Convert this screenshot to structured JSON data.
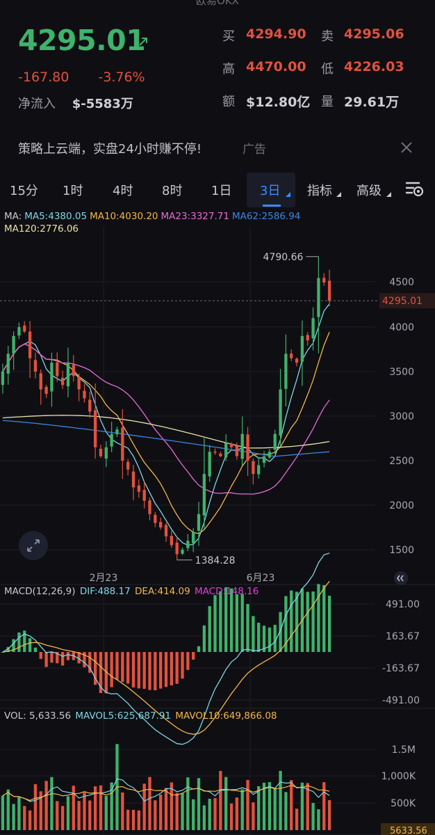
{
  "app": {
    "title": "欧易OKX"
  },
  "ticker": {
    "last_price": "4295.01",
    "change": "-167.80",
    "change_pct": "-3.76%",
    "netflow_label": "净流入",
    "netflow_value": "$-5583万"
  },
  "quote": {
    "bid_label": "买",
    "bid": "4294.90",
    "ask_label": "卖",
    "ask": "4295.06",
    "high_label": "高",
    "high": "4470.00",
    "low_label": "低",
    "low": "4226.03",
    "amount_label": "额",
    "amount": "$12.80亿",
    "volume_label": "量",
    "volume": "29.61万"
  },
  "ad": {
    "text": "策略上云端，实盘24小时赚不停!",
    "tag": "广告"
  },
  "tabs": [
    {
      "label": "15分"
    },
    {
      "label": "1时"
    },
    {
      "label": "4时"
    },
    {
      "label": "8时"
    },
    {
      "label": "1日"
    },
    {
      "label": "3日",
      "active": true
    },
    {
      "label": "指标"
    },
    {
      "label": "高级"
    }
  ],
  "ma_legend": {
    "ma_label": "MA:",
    "ma5": "MA5:4380.05",
    "ma10": "MA10:4030.20",
    "ma23": "MA23:3327.71",
    "ma62": "MA62:2586.94",
    "ma120": "MA120:2776.06"
  },
  "price_axis": [
    "4500",
    "4000",
    "3500",
    "3000",
    "2500",
    "2000",
    "1500"
  ],
  "current_price_tag": "4295.01",
  "high_marker": "4790.66",
  "low_marker": "1384.28",
  "date_axis": [
    "2月23",
    "6月23"
  ],
  "macd_legend": {
    "params": "MACD(12,26,9)",
    "dif": "DIF:488.17",
    "dea": "DEA:414.09",
    "macd": "MACD:148.16"
  },
  "macd_axis": [
    "491.00",
    "163.67",
    "-163.67",
    "-491.00"
  ],
  "vol_legend": {
    "vol": "VOL: 5,633.56",
    "mavol5": "MAVOL5:625,687.91",
    "mavol10": "MAVOL10:649,866.08"
  },
  "vol_axis": [
    "1.5M",
    "1,000K",
    "500K"
  ],
  "vol_current_tag": "5633.56",
  "colors": {
    "up": "#3fb26b",
    "down": "#e2523f",
    "ma5": "#7fd6e6",
    "ma10": "#f5b64a",
    "ma23": "#e86bd8",
    "ma62": "#3d85e0",
    "ma120": "#e8e3a8",
    "dif": "#7fd6e6",
    "dea": "#f5b64a",
    "macd": "#e23fd6"
  },
  "chart_data": [
    {
      "type": "candlestick",
      "title": "",
      "interval": "3日",
      "x_labels": [
        "2月23",
        "6月23"
      ],
      "ylim": [
        1384.28,
        4790.66
      ],
      "y_ticks": [
        1500,
        2000,
        2500,
        3000,
        3500,
        4000,
        4500
      ],
      "last": 4295.01,
      "period_high": 4790.66,
      "period_low": 1384.28,
      "moving_averages": {
        "MA5": 4380.05,
        "MA10": 4030.2,
        "MA23": 3327.71,
        "MA62": 2586.94,
        "MA120": 2776.06
      },
      "close_path": [
        3500,
        3700,
        3900,
        4000,
        3950,
        3650,
        3500,
        3300,
        3250,
        3600,
        3450,
        3350,
        3600,
        3450,
        3300,
        3200,
        3050,
        2650,
        2550,
        2650,
        2800,
        2850,
        2500,
        2400,
        2200,
        2150,
        2050,
        1900,
        1800,
        1750,
        1650,
        1550,
        1450,
        1500,
        1600,
        1700,
        1900,
        2350,
        2600,
        2600,
        2550,
        2700,
        2650,
        2550,
        2800,
        2500,
        2350,
        2450,
        2550,
        2600,
        2800,
        3300,
        3700,
        3650,
        3600,
        3900,
        3850,
        4100,
        4550,
        4500,
        4295
      ]
    },
    {
      "type": "line+bar",
      "title": "MACD(12,26,9)",
      "series": [
        {
          "name": "DIF",
          "last": 488.17
        },
        {
          "name": "DEA",
          "last": 414.09
        },
        {
          "name": "MACD",
          "last": 148.16
        }
      ],
      "y_ticks": [
        491.0,
        163.67,
        -163.67,
        -491.0
      ]
    },
    {
      "type": "bar",
      "title": "VOL",
      "series": [
        {
          "name": "VOL",
          "last": 5633.56
        },
        {
          "name": "MAVOL5",
          "last": 625687.91
        },
        {
          "name": "MAVOL10",
          "last": 649866.08
        }
      ],
      "y_ticks": [
        "1.5M",
        "1,000K",
        "500K"
      ]
    }
  ]
}
